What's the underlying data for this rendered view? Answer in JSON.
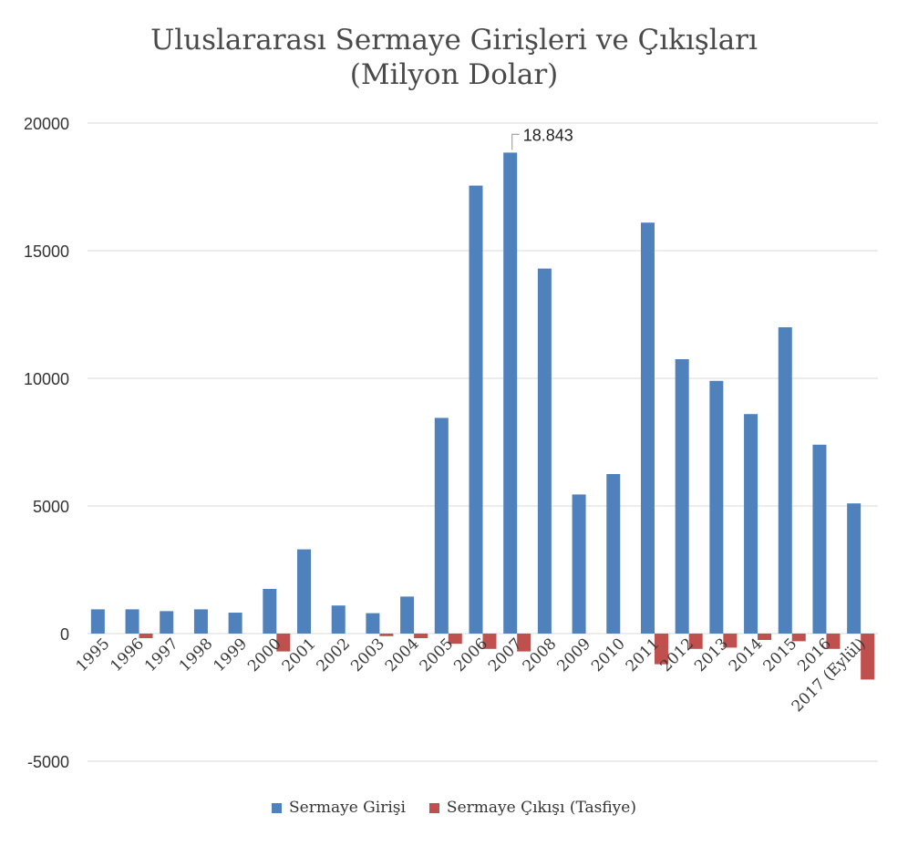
{
  "colors": {
    "inflow": "#4f81bd",
    "outflow": "#c0504d",
    "grid": "#d9d9d9"
  },
  "chart_data": {
    "type": "bar",
    "title": "Uluslararası Sermaye Girişleri ve Çıkışları",
    "subtitle": "(Milyon Dolar)",
    "xlabel": "",
    "ylabel": "",
    "ylim": [
      -5000,
      20000
    ],
    "yticks": [
      "20000",
      "15000",
      "10000",
      "5000",
      "0",
      "-5000"
    ],
    "ytick_values": [
      20000,
      15000,
      10000,
      5000,
      0,
      -5000
    ],
    "grid": true,
    "legend_position": "bottom",
    "categories": [
      "1995",
      "1996",
      "1997",
      "1998",
      "1999",
      "2000",
      "2001",
      "2002",
      "2003",
      "2004",
      "2005",
      "2006",
      "2007",
      "2008",
      "2009",
      "2010",
      "2011",
      "2012",
      "2013",
      "2014",
      "2015",
      "2016",
      "2017 (Eylül)"
    ],
    "series": [
      {
        "name": "Sermaye Girişi",
        "values": [
          950,
          950,
          880,
          950,
          820,
          1750,
          3300,
          1100,
          800,
          1450,
          8450,
          17550,
          18843,
          14300,
          5450,
          6250,
          16100,
          10750,
          9900,
          8600,
          12000,
          7400,
          5100
        ]
      },
      {
        "name": "Sermaye Çıkışı (Tasfiye)",
        "values": [
          0,
          -180,
          0,
          0,
          0,
          -700,
          0,
          0,
          -100,
          -180,
          -400,
          -600,
          -700,
          0,
          0,
          0,
          -1200,
          -600,
          -550,
          -250,
          -300,
          -600,
          -1800
        ]
      }
    ],
    "annotations": [
      {
        "category": "2007",
        "label": "18.843"
      }
    ]
  }
}
